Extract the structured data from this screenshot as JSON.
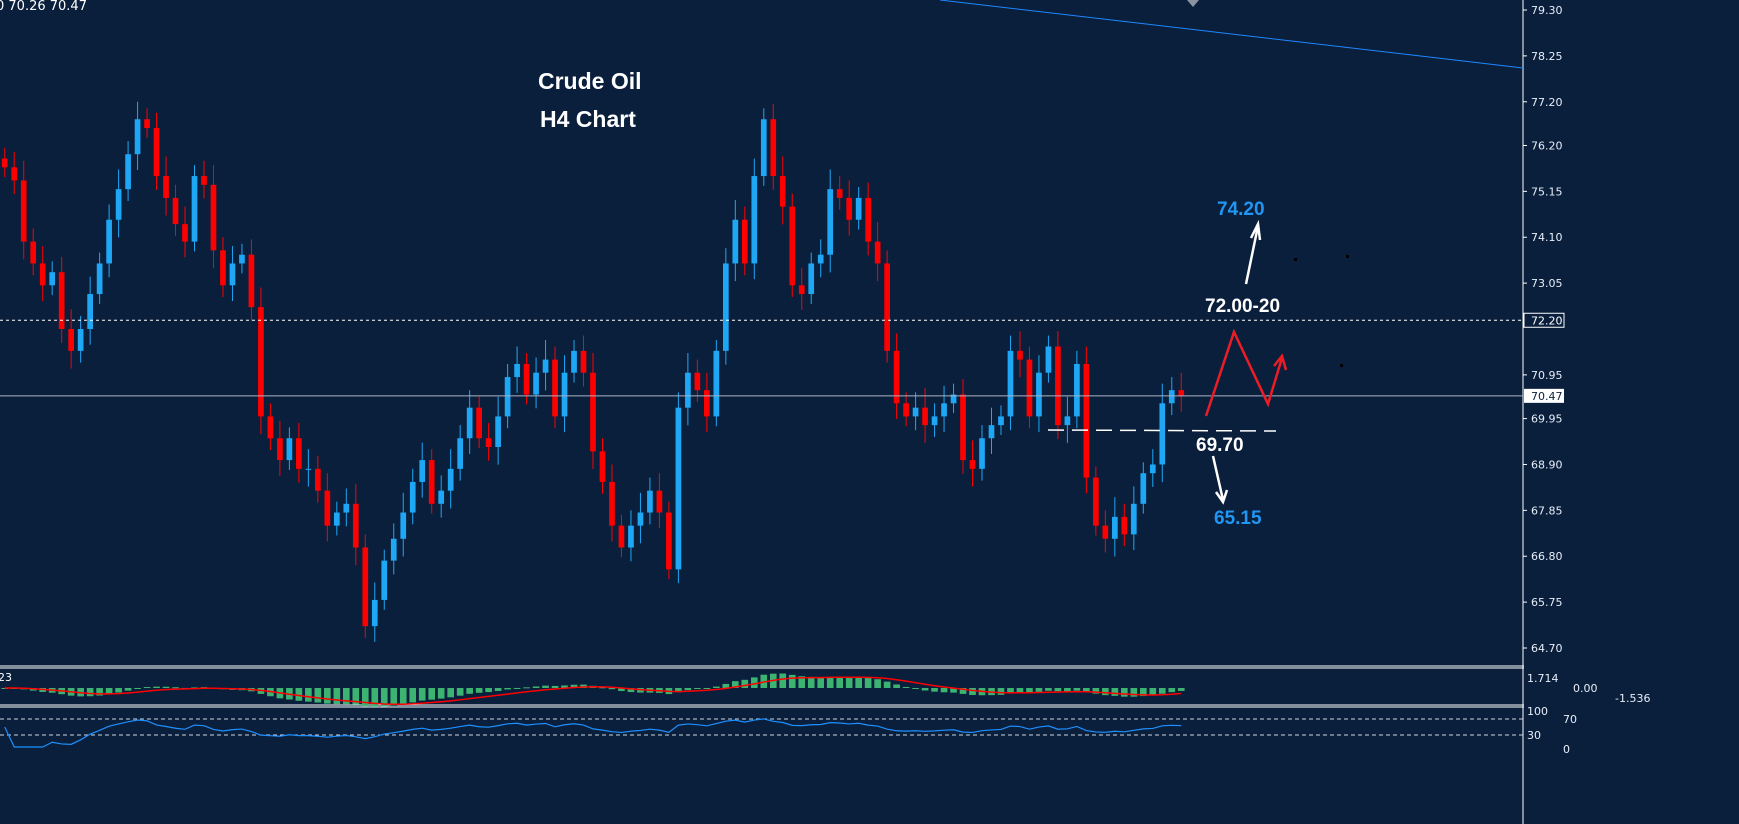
{
  "header": {
    "ohlc_text": "0 70.26 70.47"
  },
  "title": {
    "line1": "Crude Oil",
    "line2": "H4  Chart"
  },
  "annotations": {
    "target_up": "74.20",
    "resistance": "72.00-20",
    "support": "69.70",
    "target_down": "65.15"
  },
  "colors": {
    "background": "#0a1f3c",
    "bull": "#1ea7f5",
    "bear": "#ff0000",
    "trendline": "#1e88ff",
    "annotation_blue": "#2196f3",
    "macd_hist": "#3cb371",
    "macd_signal": "#ff0000",
    "rsi": "#1e90ff"
  },
  "macd": {
    "label": "23",
    "scale": [
      "1.714",
      "0.00",
      "-1.536"
    ]
  },
  "rsi": {
    "scale": [
      "100",
      "70",
      "30",
      "0"
    ]
  },
  "chart_data": {
    "type": "candlestick",
    "timeframe": "H4",
    "ylim": [
      64.7,
      79.3
    ],
    "yticks": [
      "79.30",
      "78.25",
      "77.20",
      "76.20",
      "75.15",
      "74.10",
      "73.05",
      "72.00",
      "70.95",
      "69.95",
      "68.90",
      "67.85",
      "66.80",
      "65.75",
      "64.70"
    ],
    "current_price": "70.47",
    "level_price": "72.20",
    "closes": [
      75.7,
      75.4,
      74.0,
      73.5,
      73.0,
      73.3,
      72.0,
      71.5,
      72.0,
      72.8,
      73.5,
      74.5,
      75.2,
      76.0,
      76.8,
      76.6,
      75.5,
      75.0,
      74.4,
      74.0,
      75.5,
      75.3,
      73.8,
      73.0,
      73.5,
      73.7,
      72.5,
      70.0,
      69.5,
      69.0,
      69.5,
      68.8,
      68.8,
      68.3,
      67.5,
      67.8,
      68.0,
      67.0,
      65.2,
      65.8,
      66.7,
      67.2,
      67.8,
      68.5,
      69.0,
      68.0,
      68.3,
      68.8,
      69.5,
      70.2,
      69.5,
      69.3,
      70.0,
      70.9,
      71.2,
      70.5,
      71.0,
      71.3,
      70.0,
      71.0,
      71.5,
      71.0,
      69.2,
      68.5,
      67.5,
      67.0,
      67.5,
      67.8,
      68.3,
      67.8,
      66.5,
      70.2,
      71.0,
      70.6,
      70.0,
      71.5,
      73.5,
      74.5,
      73.5,
      75.5,
      76.8,
      75.5,
      74.8,
      73.0,
      72.8,
      73.5,
      73.7,
      75.2,
      75.0,
      74.5,
      75.0,
      74.0,
      73.5,
      71.5,
      70.3,
      70.0,
      70.2,
      69.8,
      70.0,
      70.3,
      70.5,
      69.0,
      68.8,
      69.5,
      69.8,
      70.0,
      71.5,
      71.3,
      70.0,
      71.0,
      71.6,
      69.8,
      70.0,
      71.2,
      68.6,
      67.5,
      67.2,
      67.7,
      67.3,
      68.0,
      68.7,
      68.9,
      70.3,
      70.6,
      70.47
    ]
  }
}
